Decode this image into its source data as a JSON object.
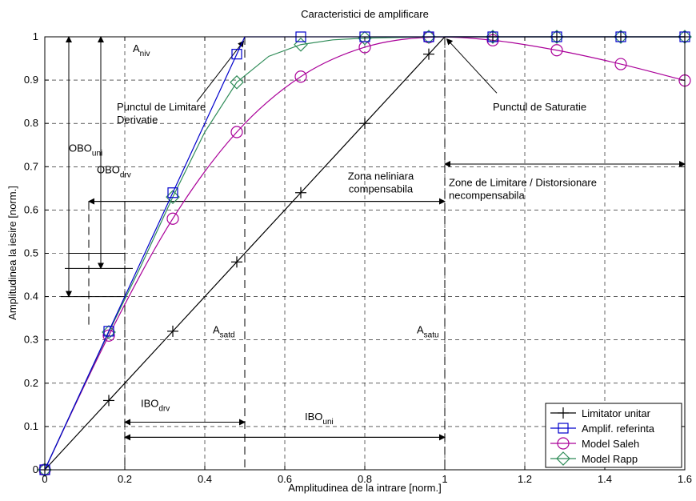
{
  "chart_data": {
    "type": "line",
    "title": "Caracteristici de amplificare",
    "xlabel": "Amplitudinea de la intrare [norm.]",
    "ylabel": "Amplitudinea la iesire [norm.]",
    "xlim": [
      0,
      1.6
    ],
    "ylim": [
      0,
      1.0
    ],
    "xticks": [
      0,
      0.2,
      0.4,
      0.6,
      0.8,
      1,
      1.2,
      1.4,
      1.6
    ],
    "xtick_labels": [
      "0",
      "0.2",
      "0.4",
      "0.6",
      "0.8",
      "1",
      "1.2",
      "1.4",
      "1.6"
    ],
    "yticks": [
      0,
      0.1,
      0.2,
      0.3,
      0.4,
      0.5,
      0.6,
      0.7,
      0.8,
      0.9,
      1
    ],
    "ytick_labels": [
      "0",
      "0.1",
      "0.2",
      "0.3",
      "0.4",
      "0.5",
      "0.6",
      "0.7",
      "0.8",
      "0.9",
      "1"
    ],
    "grid": true,
    "legend_position": "bottom-right",
    "series": [
      {
        "name": "Limitator unitar",
        "color": "#000000",
        "marker": "plus",
        "x": [
          0,
          0.16,
          0.32,
          0.48,
          0.64,
          0.8,
          0.96,
          1.0,
          1.12,
          1.28,
          1.44,
          1.6
        ],
        "y": [
          0,
          0.16,
          0.32,
          0.48,
          0.64,
          0.8,
          0.96,
          1.0,
          1.0,
          1.0,
          1.0,
          1.0
        ],
        "marker_x": [
          0,
          0.16,
          0.32,
          0.48,
          0.64,
          0.8,
          0.96,
          1.12,
          1.28,
          1.44,
          1.6
        ],
        "marker_y": [
          0,
          0.16,
          0.32,
          0.48,
          0.64,
          0.8,
          0.96,
          1.0,
          1.0,
          1.0,
          1.0
        ]
      },
      {
        "name": "Amplif. referinta",
        "color": "#0000cc",
        "marker": "square",
        "x": [
          0,
          0.16,
          0.32,
          0.48,
          0.5,
          0.64,
          0.8,
          0.96,
          1.12,
          1.28,
          1.44,
          1.6
        ],
        "y": [
          0,
          0.32,
          0.64,
          0.96,
          1.0,
          1.0,
          1.0,
          1.0,
          1.0,
          1.0,
          1.0,
          1.0
        ],
        "marker_x": [
          0,
          0.16,
          0.32,
          0.48,
          0.64,
          0.8,
          0.96,
          1.12,
          1.28,
          1.44,
          1.6
        ],
        "marker_y": [
          0,
          0.32,
          0.64,
          0.96,
          1.0,
          1.0,
          1.0,
          1.0,
          1.0,
          1.0,
          1.0
        ]
      },
      {
        "name": "Model Saleh",
        "color": "#aa0099",
        "marker": "circle",
        "x": [
          0,
          0.16,
          0.32,
          0.48,
          0.64,
          0.8,
          0.96,
          1.12,
          1.28,
          1.44,
          1.6
        ],
        "y": [
          0,
          0.31,
          0.58,
          0.78,
          0.908,
          0.976,
          0.999,
          0.992,
          0.969,
          0.937,
          0.899
        ],
        "marker_x": [
          0,
          0.16,
          0.32,
          0.48,
          0.64,
          0.8,
          0.96,
          1.12,
          1.28,
          1.44,
          1.6
        ],
        "marker_y": [
          0,
          0.31,
          0.58,
          0.78,
          0.908,
          0.976,
          0.999,
          0.992,
          0.969,
          0.937,
          0.899
        ]
      },
      {
        "name": "Model Rapp",
        "color": "#2e8b57",
        "marker": "diamond",
        "x": [
          0,
          0.08,
          0.16,
          0.24,
          0.32,
          0.4,
          0.48,
          0.56,
          0.64,
          0.72,
          0.8,
          0.96,
          1.12,
          1.28,
          1.44,
          1.6
        ],
        "y": [
          0,
          0.16,
          0.318,
          0.47,
          0.63,
          0.78,
          0.895,
          0.955,
          0.982,
          0.993,
          0.997,
          1.0,
          1.0,
          1.0,
          1.0,
          1.0
        ],
        "marker_x": [
          0,
          0.16,
          0.32,
          0.48,
          0.64,
          0.8,
          0.96,
          1.12,
          1.28,
          1.44,
          1.6
        ],
        "marker_y": [
          0,
          0.318,
          0.63,
          0.895,
          0.982,
          0.997,
          1.0,
          1.0,
          1.0,
          1.0,
          1.0
        ]
      }
    ],
    "annotations": [
      {
        "id": "a_niv",
        "text": "A",
        "sub": "niv"
      },
      {
        "id": "punct_lim",
        "lines": [
          "Punctul de Limitare",
          "Derivatie"
        ]
      },
      {
        "id": "punct_sat",
        "text": "Punctul de Saturatie"
      },
      {
        "id": "obo_uni",
        "text": "OBO",
        "sub": "uni"
      },
      {
        "id": "obo_drv",
        "text": "OBO",
        "sub": "drv"
      },
      {
        "id": "zona_nel",
        "lines": [
          "Zona neliniara",
          "compensabila"
        ]
      },
      {
        "id": "zone_lim",
        "lines": [
          "Zone de Limitare / Distorsionare",
          "necompensabila"
        ]
      },
      {
        "id": "a_satd",
        "text": "A",
        "sub": "satd"
      },
      {
        "id": "a_satu",
        "text": "A",
        "sub": "satu"
      },
      {
        "id": "ibo_drv",
        "text": "IBO",
        "sub": "drv"
      },
      {
        "id": "ibo_uni",
        "text": "IBO",
        "sub": "uni"
      }
    ]
  }
}
